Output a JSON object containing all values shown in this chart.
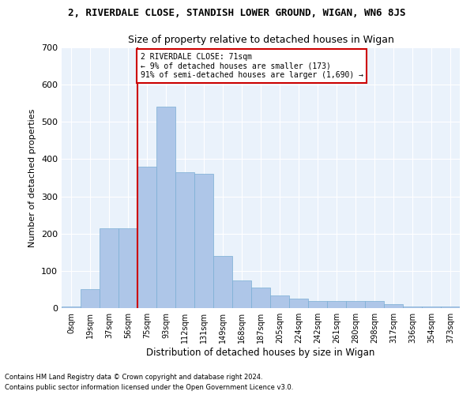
{
  "title": "2, RIVERDALE CLOSE, STANDISH LOWER GROUND, WIGAN, WN6 8JS",
  "subtitle": "Size of property relative to detached houses in Wigan",
  "xlabel": "Distribution of detached houses by size in Wigan",
  "ylabel": "Number of detached properties",
  "bin_labels": [
    "0sqm",
    "19sqm",
    "37sqm",
    "56sqm",
    "75sqm",
    "93sqm",
    "112sqm",
    "131sqm",
    "149sqm",
    "168sqm",
    "187sqm",
    "205sqm",
    "224sqm",
    "242sqm",
    "261sqm",
    "280sqm",
    "298sqm",
    "317sqm",
    "336sqm",
    "354sqm",
    "373sqm"
  ],
  "bar_heights": [
    5,
    50,
    215,
    215,
    380,
    540,
    365,
    360,
    140,
    75,
    55,
    35,
    25,
    20,
    20,
    20,
    20,
    10,
    5,
    5,
    5
  ],
  "bar_color": "#AEC6E8",
  "bar_edge_color": "#7AAED4",
  "property_line_color": "#CC0000",
  "annotation_text": "2 RIVERDALE CLOSE: 71sqm\n← 9% of detached houses are smaller (173)\n91% of semi-detached houses are larger (1,690) →",
  "annotation_box_color": "#CC0000",
  "ylim": [
    0,
    700
  ],
  "yticks": [
    0,
    100,
    200,
    300,
    400,
    500,
    600,
    700
  ],
  "footer_line1": "Contains HM Land Registry data © Crown copyright and database right 2024.",
  "footer_line2": "Contains public sector information licensed under the Open Government Licence v3.0.",
  "background_color": "#EAF2FB",
  "grid_color": "#FFFFFF"
}
